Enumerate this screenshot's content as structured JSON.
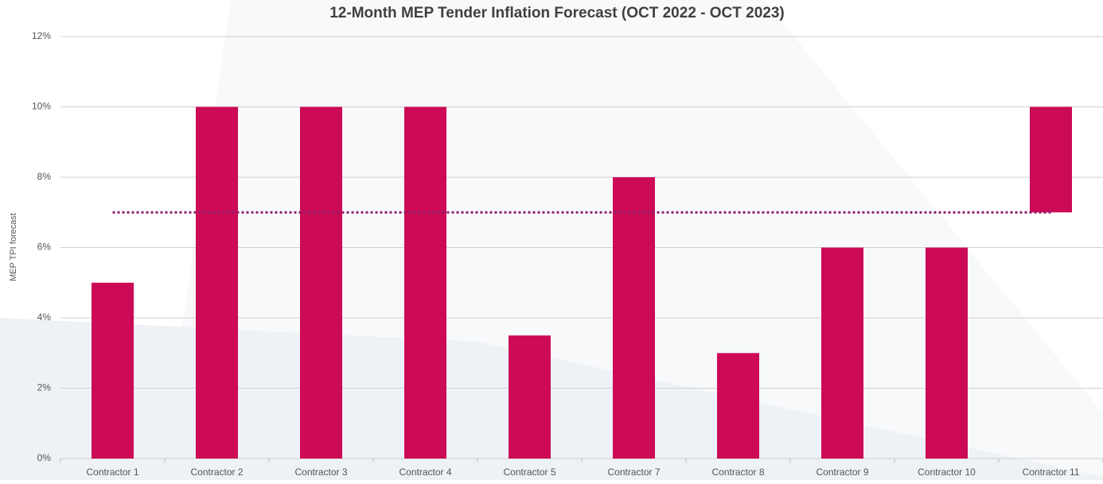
{
  "chart_data": {
    "type": "bar",
    "title": "12-Month MEP Tender Inflation Forecast (OCT 2022 - OCT 2023)",
    "y_label": "MEP TPI forecast",
    "categories": [
      "Contractor 1",
      "Contractor 2",
      "Contractor 3",
      "Contractor 4",
      "Contractor 5",
      "Contractor 7",
      "Contractor 8",
      "Contractor 9",
      "Contractor 10",
      "Contractor 11"
    ],
    "values": [
      5,
      10,
      10,
      10,
      3.5,
      8,
      3,
      6,
      6,
      [
        7,
        10
      ]
    ],
    "color": "#cc0a55",
    "average_line": 7,
    "average_color": "#8e1f6e",
    "ylim": [
      0,
      12
    ],
    "yticks": [
      {
        "value": 0,
        "label": "0%"
      },
      {
        "value": 2,
        "label": "2%"
      },
      {
        "value": 4,
        "label": "4%"
      },
      {
        "value": 6,
        "label": "6%"
      },
      {
        "value": 8,
        "label": "8%"
      },
      {
        "value": 10,
        "label": "10%"
      },
      {
        "value": 12,
        "label": "12%"
      }
    ],
    "grid": true
  }
}
